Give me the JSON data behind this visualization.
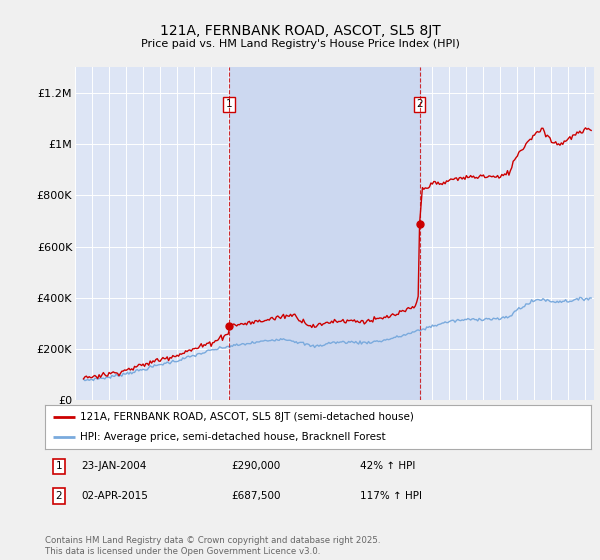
{
  "title": "121A, FERNBANK ROAD, ASCOT, SL5 8JT",
  "subtitle": "Price paid vs. HM Land Registry's House Price Index (HPI)",
  "ylabel_ticks": [
    "£0",
    "£200K",
    "£400K",
    "£600K",
    "£800K",
    "£1M",
    "£1.2M"
  ],
  "ytick_values": [
    0,
    200000,
    400000,
    600000,
    800000,
    1000000,
    1200000
  ],
  "ylim": [
    0,
    1300000
  ],
  "xlim_start": 1995.4,
  "xlim_end": 2025.5,
  "fig_bg_color": "#f0f0f0",
  "plot_bg_color": "#dde5f5",
  "red_line_color": "#cc0000",
  "blue_line_color": "#7aaadd",
  "vline1_x": 2004.07,
  "vline2_x": 2015.25,
  "span_color": "#ccd8f0",
  "marker1_x": 2004.07,
  "marker1_y": 290000,
  "marker2_x": 2015.25,
  "marker2_y": 687500,
  "legend_label1": "121A, FERNBANK ROAD, ASCOT, SL5 8JT (semi-detached house)",
  "legend_label2": "HPI: Average price, semi-detached house, Bracknell Forest",
  "annotation1_date": "23-JAN-2004",
  "annotation1_price": "£290,000",
  "annotation1_hpi": "42% ↑ HPI",
  "annotation2_date": "02-APR-2015",
  "annotation2_price": "£687,500",
  "annotation2_hpi": "117% ↑ HPI",
  "footer": "Contains HM Land Registry data © Crown copyright and database right 2025.\nThis data is licensed under the Open Government Licence v3.0."
}
